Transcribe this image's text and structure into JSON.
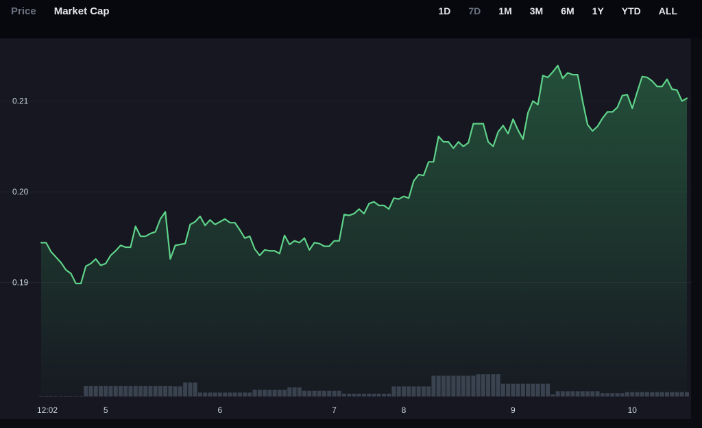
{
  "header": {
    "tabs": [
      {
        "label": "Price",
        "active": false
      },
      {
        "label": "Market Cap",
        "active": true
      }
    ],
    "ranges": [
      {
        "label": "1D",
        "active": false
      },
      {
        "label": "7D",
        "active": true
      },
      {
        "label": "1M",
        "active": false
      },
      {
        "label": "3M",
        "active": false
      },
      {
        "label": "6M",
        "active": false
      },
      {
        "label": "1Y",
        "active": false
      },
      {
        "label": "YTD",
        "active": false
      },
      {
        "label": "ALL",
        "active": false
      }
    ]
  },
  "colors": {
    "line": "#5fd38a",
    "area_top": "#2f7d4f",
    "volume": "#3a4050",
    "gridline": "#22242e"
  },
  "chart_data": {
    "type": "area",
    "title": "",
    "xlabel": "",
    "ylabel": "",
    "ylim": [
      0.1807,
      0.2169
    ],
    "yticks": [
      0.19,
      0.2,
      0.21
    ],
    "ytick_labels": [
      "0.19",
      "0.20",
      "0.21"
    ],
    "grid": true,
    "xticks": [
      {
        "i": 0,
        "label": "12:02"
      },
      {
        "i": 13,
        "label": "5"
      },
      {
        "i": 36,
        "label": "6"
      },
      {
        "i": 59,
        "label": "7"
      },
      {
        "i": 73,
        "label": "8"
      },
      {
        "i": 95,
        "label": "9"
      },
      {
        "i": 119,
        "label": "10"
      }
    ],
    "series": [
      {
        "values": [
          0.1944,
          0.1944,
          0.1934,
          0.1928,
          0.1922,
          0.1914,
          0.191,
          0.1899,
          0.1899,
          0.1918,
          0.1921,
          0.1926,
          0.1919,
          0.1921,
          0.193,
          0.1935,
          0.1941,
          0.1939,
          0.1939,
          0.1962,
          0.1951,
          0.1951,
          0.1954,
          0.1956,
          0.197,
          0.1978,
          0.1926,
          0.1941,
          0.1942,
          0.1943,
          0.1964,
          0.1967,
          0.1973,
          0.1963,
          0.1969,
          0.1964,
          0.1967,
          0.197,
          0.1966,
          0.1966,
          0.1958,
          0.1949,
          0.1951,
          0.1937,
          0.193,
          0.1936,
          0.1935,
          0.1935,
          0.1932,
          0.1952,
          0.1942,
          0.1946,
          0.1944,
          0.1949,
          0.1936,
          0.1944,
          0.1943,
          0.194,
          0.194,
          0.1946,
          0.1946,
          0.1975,
          0.1974,
          0.1976,
          0.1981,
          0.1976,
          0.1987,
          0.1989,
          0.1985,
          0.1985,
          0.1981,
          0.1993,
          0.1992,
          0.1995,
          0.1993,
          0.2012,
          0.2019,
          0.2018,
          0.2033,
          0.2033,
          0.2061,
          0.2055,
          0.2055,
          0.2048,
          0.2055,
          0.205,
          0.2054,
          0.2075,
          0.2075,
          0.2075,
          0.2055,
          0.205,
          0.2066,
          0.2073,
          0.2064,
          0.208,
          0.2068,
          0.2058,
          0.2087,
          0.21,
          0.2096,
          0.2128,
          0.2126,
          0.2132,
          0.2139,
          0.2125,
          0.2131,
          0.2129,
          0.2129,
          0.21,
          0.2074,
          0.2067,
          0.2072,
          0.2081,
          0.2088,
          0.2088,
          0.2093,
          0.2106,
          0.2107,
          0.2092,
          0.211,
          0.2127,
          0.2126,
          0.2122,
          0.2116,
          0.2116,
          0.2124,
          0.2113,
          0.2112,
          0.21,
          0.2103
        ]
      }
    ],
    "volume": [
      {
        "from": 0,
        "to": 8,
        "level": 0.06
      },
      {
        "from": 9,
        "to": 26,
        "level": 0.95
      },
      {
        "from": 27,
        "to": 28,
        "level": 0.92
      },
      {
        "from": 29,
        "to": 31,
        "level": 1.28
      },
      {
        "from": 32,
        "to": 42,
        "level": 0.36
      },
      {
        "from": 43,
        "to": 49,
        "level": 0.62
      },
      {
        "from": 50,
        "to": 52,
        "level": 0.84
      },
      {
        "from": 53,
        "to": 60,
        "level": 0.52
      },
      {
        "from": 61,
        "to": 70,
        "level": 0.26
      },
      {
        "from": 71,
        "to": 78,
        "level": 0.92
      },
      {
        "from": 79,
        "to": 87,
        "level": 1.9
      },
      {
        "from": 88,
        "to": 92,
        "level": 2.05
      },
      {
        "from": 93,
        "to": 102,
        "level": 1.16
      },
      {
        "from": 103,
        "to": 103,
        "level": 0.2
      },
      {
        "from": 104,
        "to": 112,
        "level": 0.48
      },
      {
        "from": 113,
        "to": 117,
        "level": 0.3
      },
      {
        "from": 118,
        "to": 130,
        "level": 0.4
      }
    ]
  }
}
